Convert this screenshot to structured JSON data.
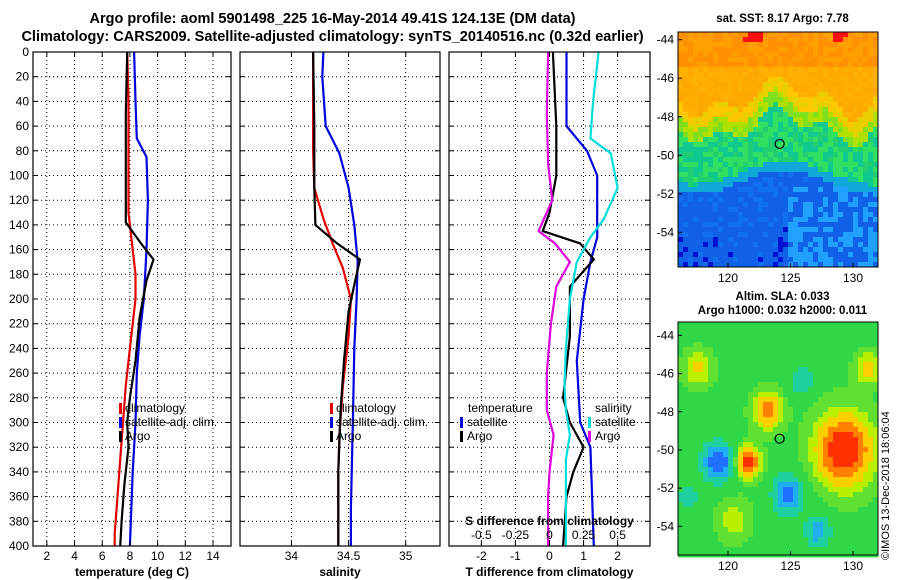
{
  "title": {
    "line1": "Argo profile: aoml 5901498_225 16-May-2014 49.41S 124.13E (DM data)",
    "line2": "Climatology: CARS2009. Satellite-adjusted climatology: synTS_20140516.nc (0.32d earlier)"
  },
  "colors": {
    "climatology": "#e00000",
    "satellite": "#0000dd",
    "argo": "#000000",
    "salinity_diff": "#dd00dd",
    "temperature_diff_cyan": "#00dddd"
  },
  "chart_data": [
    {
      "type": "line",
      "name": "temperature-profile",
      "xlabel": "temperature (deg C)",
      "xlim": [
        1,
        15.3
      ],
      "ylim": [
        400,
        0
      ],
      "xticks": [
        "2",
        "4",
        "6",
        "8",
        "10",
        "12",
        "14"
      ],
      "xtick_values": [
        2,
        4,
        6,
        8,
        10,
        12,
        14
      ],
      "depth_ticks": [
        "0",
        "20",
        "40",
        "60",
        "80",
        "100",
        "120",
        "140",
        "160",
        "180",
        "200",
        "220",
        "240",
        "260",
        "280",
        "300",
        "320",
        "340",
        "360",
        "380",
        "400"
      ],
      "grid": true,
      "legend": [
        "climatology",
        "satellite-adj. clim.",
        "Argo"
      ],
      "series": [
        {
          "name": "climatology",
          "color": "#e00000",
          "points": [
            [
              7.8,
              0
            ],
            [
              7.9,
              40
            ],
            [
              7.9,
              100
            ],
            [
              7.9,
              130
            ],
            [
              8.2,
              160
            ],
            [
              8.4,
              180
            ],
            [
              8.4,
              200
            ],
            [
              8.2,
              220
            ],
            [
              8.0,
              240
            ],
            [
              7.7,
              270
            ],
            [
              7.5,
              300
            ],
            [
              7.3,
              330
            ],
            [
              7.1,
              360
            ],
            [
              6.9,
              390
            ],
            [
              6.9,
              400
            ]
          ]
        },
        {
          "name": "satellite-adj. clim.",
          "color": "#0000dd",
          "points": [
            [
              8.3,
              0
            ],
            [
              8.4,
              40
            ],
            [
              8.5,
              70
            ],
            [
              9.2,
              85
            ],
            [
              9.3,
              120
            ],
            [
              9.2,
              160
            ],
            [
              9.1,
              180
            ],
            [
              9.0,
              200
            ],
            [
              8.7,
              230
            ],
            [
              8.5,
              260
            ],
            [
              8.4,
              300
            ],
            [
              8.2,
              340
            ],
            [
              8.1,
              370
            ],
            [
              8.0,
              400
            ]
          ]
        },
        {
          "name": "Argo",
          "color": "#000000",
          "points": [
            [
              7.8,
              0
            ],
            [
              7.7,
              50
            ],
            [
              7.7,
              100
            ],
            [
              7.7,
              138
            ],
            [
              8.8,
              155
            ],
            [
              9.7,
              168
            ],
            [
              9.2,
              185
            ],
            [
              8.7,
              215
            ],
            [
              8.4,
              250
            ],
            [
              8.0,
              280
            ],
            [
              7.8,
              300
            ],
            [
              7.9,
              320
            ],
            [
              7.6,
              350
            ],
            [
              7.4,
              380
            ],
            [
              7.3,
              400
            ]
          ]
        }
      ]
    },
    {
      "type": "line",
      "name": "salinity-profile",
      "xlabel": "salinity",
      "xlim": [
        33.55,
        35.3
      ],
      "ylim": [
        400,
        0
      ],
      "xticks": [
        "34",
        "34.5",
        "35"
      ],
      "xtick_values": [
        34,
        34.5,
        35
      ],
      "grid": true,
      "legend": [
        "climatology",
        "satellite-adj. clim.",
        "Argo"
      ],
      "series": [
        {
          "name": "climatology",
          "color": "#e00000",
          "points": [
            [
              34.19,
              0
            ],
            [
              34.19,
              80
            ],
            [
              34.2,
              110
            ],
            [
              34.28,
              135
            ],
            [
              34.36,
              155
            ],
            [
              34.45,
              175
            ],
            [
              34.52,
              200
            ],
            [
              34.5,
              230
            ],
            [
              34.45,
              270
            ],
            [
              34.42,
              310
            ],
            [
              34.41,
              340
            ],
            [
              34.41,
              400
            ]
          ]
        },
        {
          "name": "satellite-adj. clim.",
          "color": "#0000dd",
          "points": [
            [
              34.28,
              0
            ],
            [
              34.27,
              20
            ],
            [
              34.3,
              60
            ],
            [
              34.42,
              82
            ],
            [
              34.5,
              110
            ],
            [
              34.55,
              140
            ],
            [
              34.58,
              170
            ],
            [
              34.57,
              200
            ],
            [
              34.55,
              240
            ],
            [
              34.54,
              290
            ],
            [
              34.53,
              330
            ],
            [
              34.52,
              370
            ],
            [
              34.52,
              400
            ]
          ]
        },
        {
          "name": "Argo",
          "color": "#000000",
          "points": [
            [
              34.19,
              0
            ],
            [
              34.2,
              60
            ],
            [
              34.2,
              110
            ],
            [
              34.21,
              140
            ],
            [
              34.4,
              155
            ],
            [
              34.6,
              168
            ],
            [
              34.57,
              180
            ],
            [
              34.5,
              210
            ],
            [
              34.46,
              250
            ],
            [
              34.43,
              290
            ],
            [
              34.41,
              340
            ],
            [
              34.41,
              400
            ]
          ]
        }
      ]
    },
    {
      "type": "line",
      "name": "difference-from-climatology",
      "xlabel": "T difference from climatology",
      "xlabel_top": "S difference from climatology",
      "xlim": [
        -2.95,
        2.95
      ],
      "ylim": [
        400,
        0
      ],
      "xticks": [
        "-2",
        "-1",
        "0",
        "1",
        "2"
      ],
      "xtick_values": [
        -2,
        -1,
        0,
        1,
        2
      ],
      "sticks": [
        "-0.5",
        "-0.25",
        "0",
        "0.25",
        "0.5"
      ],
      "stick_values": [
        -0.5,
        -0.25,
        0,
        0.25,
        0.5
      ],
      "grid": true,
      "legend_left_title": "temperature",
      "legend_right_title": "salinity",
      "legend": [
        "satellite",
        "Argo"
      ],
      "series": [
        {
          "name": "T satellite",
          "color": "#0000dd",
          "points": [
            [
              0.5,
              0
            ],
            [
              0.5,
              60
            ],
            [
              1.1,
              80
            ],
            [
              1.4,
              100
            ],
            [
              1.4,
              150
            ],
            [
              1.2,
              170
            ],
            [
              1.0,
              200
            ],
            [
              0.8,
              250
            ],
            [
              0.9,
              300
            ],
            [
              1.2,
              320
            ],
            [
              1.3,
              400
            ]
          ]
        },
        {
          "name": "T Argo",
          "color": "#000000",
          "points": [
            [
              0.1,
              0
            ],
            [
              0.2,
              60
            ],
            [
              0.2,
              100
            ],
            [
              0.0,
              130
            ],
            [
              -0.2,
              145
            ],
            [
              0.9,
              155
            ],
            [
              1.3,
              168
            ],
            [
              0.6,
              190
            ],
            [
              0.6,
              230
            ],
            [
              0.4,
              280
            ],
            [
              0.6,
              300
            ],
            [
              1.0,
              320
            ],
            [
              0.7,
              340
            ],
            [
              0.5,
              360
            ],
            [
              0.4,
              400
            ]
          ]
        },
        {
          "name": "S satellite",
          "color": "#00dddd",
          "points": [
            [
              0.36,
              0
            ],
            [
              0.32,
              40
            ],
            [
              0.3,
              70
            ],
            [
              0.45,
              82
            ],
            [
              0.5,
              110
            ],
            [
              0.4,
              135
            ],
            [
              0.3,
              150
            ],
            [
              0.2,
              170
            ],
            [
              0.15,
              200
            ],
            [
              0.12,
              240
            ],
            [
              0.11,
              270
            ],
            [
              0.12,
              290
            ],
            [
              0.15,
              310
            ],
            [
              0.12,
              330
            ],
            [
              0.12,
              400
            ]
          ]
        },
        {
          "name": "S Argo",
          "color": "#dd00dd",
          "points": [
            [
              -0.01,
              0
            ],
            [
              -0.02,
              50
            ],
            [
              -0.01,
              90
            ],
            [
              0.02,
              120
            ],
            [
              -0.08,
              145
            ],
            [
              0.04,
              155
            ],
            [
              0.15,
              170
            ],
            [
              0.05,
              190
            ],
            [
              0.01,
              220
            ],
            [
              -0.02,
              260
            ],
            [
              -0.02,
              290
            ],
            [
              0.03,
              310
            ],
            [
              0.0,
              340
            ],
            [
              -0.01,
              360
            ],
            [
              -0.01,
              400
            ]
          ]
        }
      ]
    },
    {
      "type": "heatmap",
      "name": "satellite-sst-map",
      "title": "sat. SST: 8.17 Argo: 7.78",
      "xlim": [
        116,
        132
      ],
      "ylim": [
        -55.8,
        -43.6
      ],
      "xticks": [
        "120",
        "125",
        "130"
      ],
      "xtick_values": [
        120,
        125,
        130
      ],
      "yticks": [
        "-44",
        "-46",
        "-48",
        "-50",
        "-52",
        "-54"
      ],
      "ytick_values": [
        -44,
        -46,
        -48,
        -50,
        -52,
        -54
      ],
      "argo_marker": [
        124.13,
        -49.41
      ]
    },
    {
      "type": "heatmap",
      "name": "altimetry-sla-map",
      "title1": "Altim. SLA: 0.033",
      "title2": "Argo h1000: 0.032 h2000: 0.011",
      "xlim": [
        116,
        132
      ],
      "ylim": [
        -55.5,
        -43.3
      ],
      "xticks": [
        "120",
        "125",
        "130"
      ],
      "xtick_values": [
        120,
        125,
        130
      ],
      "yticks": [
        "-44",
        "-46",
        "-48",
        "-50",
        "-52",
        "-54"
      ],
      "ytick_values": [
        -44,
        -46,
        -48,
        -50,
        -52,
        -54
      ],
      "argo_marker": [
        124.13,
        -49.41
      ]
    }
  ],
  "watermark": "©IMOS 13-Dec-2018 18:06:04"
}
